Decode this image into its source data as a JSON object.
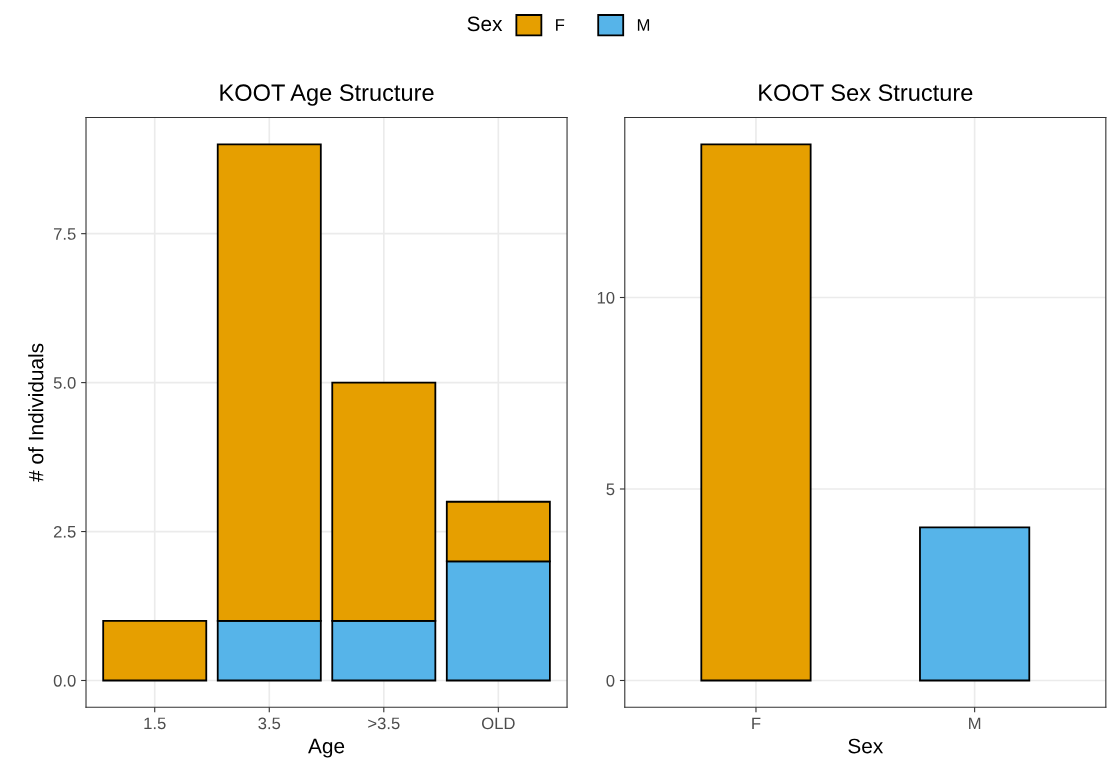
{
  "chart_data": [
    {
      "type": "bar",
      "title": "KOOT Age Structure",
      "xlabel": "Age",
      "ylabel": "# of Individuals",
      "categories": [
        "1.5",
        "3.5",
        ">3.5",
        "OLD"
      ],
      "stacked": true,
      "legend": "top",
      "legend_title": "Sex",
      "series": [
        {
          "name": "M",
          "color": "#56b4e9",
          "values": [
            0,
            1,
            1,
            2
          ]
        },
        {
          "name": "F",
          "color": "#e69f00",
          "values": [
            1,
            8,
            4,
            1
          ]
        }
      ],
      "ylim": [
        -0.45,
        9.45
      ],
      "yticks": [
        {
          "value": 0,
          "label": "0.0"
        },
        {
          "value": 2.5,
          "label": "2.5"
        },
        {
          "value": 5,
          "label": "5.0"
        },
        {
          "value": 7.5,
          "label": "7.5"
        }
      ],
      "grid": true
    },
    {
      "type": "bar",
      "title": "KOOT Sex Structure",
      "xlabel": "Sex",
      "categories": [
        "F",
        "M"
      ],
      "values": [
        14,
        4
      ],
      "colors": [
        "#e69f00",
        "#56b4e9"
      ],
      "ylim": [
        -0.7,
        14.7
      ],
      "yticks": [
        0,
        5,
        10
      ],
      "grid": true
    }
  ]
}
